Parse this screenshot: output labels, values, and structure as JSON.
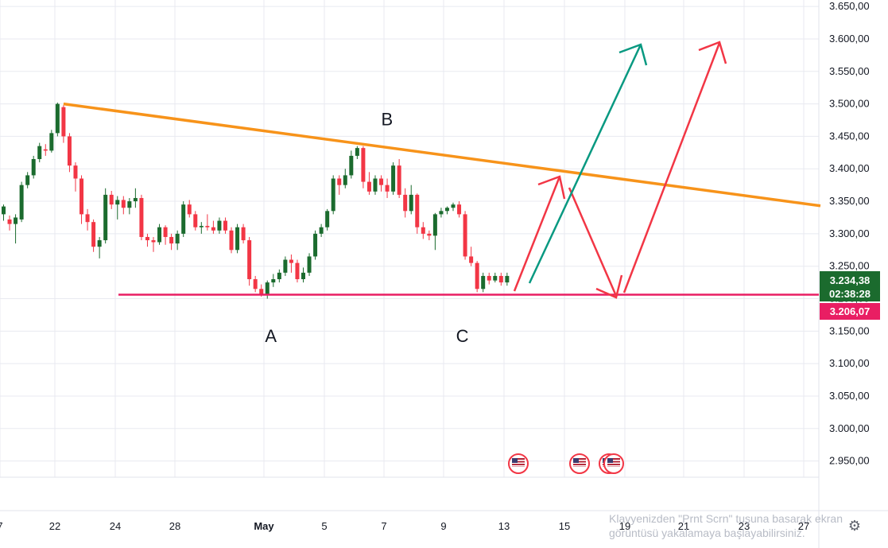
{
  "chart_data": {
    "type": "candlestick",
    "title": "",
    "xlabel": "",
    "ylabel": "",
    "ylim": [
      2925,
      3660
    ],
    "y_ticks": [
      "3.650,00",
      "3.600,00",
      "3.550,00",
      "3.500,00",
      "3.450,00",
      "3.400,00",
      "3.350,00",
      "3.300,00",
      "3.250,00",
      "3.200,00",
      "3.150,00",
      "3.100,00",
      "3.050,00",
      "3.000,00",
      "2.950,00"
    ],
    "y_tick_values": [
      3650,
      3600,
      3550,
      3500,
      3450,
      3400,
      3350,
      3300,
      3250,
      3200,
      3150,
      3100,
      3050,
      3000,
      2950
    ],
    "x_ticks": [
      "7",
      "22",
      "24",
      "28",
      "May",
      "5",
      "7",
      "9",
      "13",
      "15",
      "19",
      "21",
      "23",
      "27"
    ],
    "candles": [
      [
        3330,
        3342,
        3320,
        3345
      ],
      [
        3322,
        3315,
        3305,
        3328
      ],
      [
        3315,
        3325,
        3285,
        3330
      ],
      [
        3322,
        3375,
        3318,
        3380
      ],
      [
        3375,
        3390,
        3370,
        3395
      ],
      [
        3390,
        3415,
        3385,
        3420
      ],
      [
        3415,
        3435,
        3410,
        3440
      ],
      [
        3430,
        3428,
        3420,
        3438
      ],
      [
        3428,
        3455,
        3425,
        3460
      ],
      [
        3455,
        3500,
        3450,
        3502
      ],
      [
        3495,
        3450,
        3440,
        3498
      ],
      [
        3450,
        3405,
        3395,
        3455
      ],
      [
        3405,
        3385,
        3365,
        3410
      ],
      [
        3385,
        3330,
        3315,
        3390
      ],
      [
        3330,
        3318,
        3305,
        3338
      ],
      [
        3318,
        3280,
        3272,
        3322
      ],
      [
        3280,
        3290,
        3262,
        3295
      ],
      [
        3290,
        3360,
        3285,
        3370
      ],
      [
        3360,
        3345,
        3338,
        3366
      ],
      [
        3345,
        3352,
        3322,
        3358
      ],
      [
        3352,
        3340,
        3330,
        3358
      ],
      [
        3340,
        3350,
        3330,
        3355
      ],
      [
        3350,
        3355,
        3340,
        3370
      ],
      [
        3355,
        3295,
        3290,
        3360
      ],
      [
        3295,
        3290,
        3280,
        3300
      ],
      [
        3290,
        3287,
        3272,
        3295
      ],
      [
        3287,
        3310,
        3283,
        3315
      ],
      [
        3310,
        3295,
        3283,
        3313
      ],
      [
        3295,
        3285,
        3275,
        3300
      ],
      [
        3285,
        3300,
        3275,
        3305
      ],
      [
        3300,
        3345,
        3295,
        3350
      ],
      [
        3345,
        3330,
        3325,
        3352
      ],
      [
        3330,
        3310,
        3305,
        3335
      ],
      [
        3310,
        3312,
        3300,
        3318
      ],
      [
        3312,
        3310,
        3305,
        3330
      ],
      [
        3310,
        3305,
        3300,
        3320
      ],
      [
        3305,
        3320,
        3300,
        3325
      ],
      [
        3320,
        3305,
        3300,
        3325
      ],
      [
        3305,
        3275,
        3270,
        3310
      ],
      [
        3275,
        3310,
        3270,
        3315
      ],
      [
        3310,
        3290,
        3285,
        3315
      ],
      [
        3290,
        3230,
        3220,
        3295
      ],
      [
        3230,
        3215,
        3210,
        3235
      ],
      [
        3215,
        3205,
        3203,
        3222
      ],
      [
        3205,
        3225,
        3200,
        3228
      ],
      [
        3225,
        3230,
        3218,
        3238
      ],
      [
        3230,
        3240,
        3225,
        3245
      ],
      [
        3240,
        3260,
        3235,
        3265
      ],
      [
        3260,
        3255,
        3240,
        3268
      ],
      [
        3255,
        3230,
        3225,
        3260
      ],
      [
        3230,
        3240,
        3225,
        3248
      ],
      [
        3240,
        3265,
        3235,
        3270
      ],
      [
        3265,
        3300,
        3260,
        3305
      ],
      [
        3300,
        3310,
        3295,
        3315
      ],
      [
        3310,
        3335,
        3305,
        3338
      ],
      [
        3335,
        3385,
        3330,
        3390
      ],
      [
        3385,
        3375,
        3360,
        3390
      ],
      [
        3375,
        3390,
        3370,
        3400
      ],
      [
        3390,
        3420,
        3385,
        3428
      ],
      [
        3420,
        3432,
        3415,
        3435
      ],
      [
        3432,
        3380,
        3370,
        3435
      ],
      [
        3380,
        3365,
        3360,
        3395
      ],
      [
        3365,
        3385,
        3360,
        3390
      ],
      [
        3385,
        3375,
        3365,
        3390
      ],
      [
        3375,
        3365,
        3355,
        3385
      ],
      [
        3365,
        3405,
        3360,
        3410
      ],
      [
        3405,
        3360,
        3355,
        3415
      ],
      [
        3360,
        3335,
        3325,
        3370
      ],
      [
        3335,
        3360,
        3330,
        3375
      ],
      [
        3360,
        3310,
        3300,
        3362
      ],
      [
        3310,
        3300,
        3292,
        3318
      ],
      [
        3300,
        3297,
        3290,
        3305
      ],
      [
        3297,
        3330,
        3275,
        3332
      ],
      [
        3330,
        3335,
        3325,
        3340
      ],
      [
        3335,
        3340,
        3330,
        3342
      ],
      [
        3340,
        3345,
        3335,
        3348
      ],
      [
        3345,
        3330,
        3325,
        3350
      ],
      [
        3330,
        3265,
        3260,
        3335
      ],
      [
        3265,
        3255,
        3250,
        3280
      ],
      [
        3255,
        3215,
        3210,
        3258
      ],
      [
        3215,
        3235,
        3210,
        3240
      ],
      [
        3235,
        3228,
        3222,
        3240
      ],
      [
        3228,
        3235,
        3225,
        3240
      ],
      [
        3235,
        3225,
        3220,
        3240
      ],
      [
        3225,
        3235,
        3220,
        3240
      ]
    ],
    "annotations": {
      "trendline": {
        "from": [
          10,
          3500
        ],
        "to": [
          125,
          3343
        ]
      },
      "support": {
        "from": [
          17,
          3206.07
        ],
        "to": [
          125,
          3206.07
        ]
      },
      "labels": [
        "A",
        "B",
        "C"
      ],
      "label_points": [
        [
          43,
          3180
        ],
        [
          60,
          3460
        ],
        [
          76,
          3180
        ]
      ]
    },
    "current_price": "3.234,38",
    "countdown": "02:38:28",
    "support_price": "3.206,07"
  },
  "colors": {
    "up": "#1b6b2e",
    "down": "#f23645",
    "trendline": "#f7931a",
    "support": "#e91e63",
    "green_arrow": "#089981",
    "red_arrow": "#f23645",
    "grid": "#e8eaf0",
    "price_badge": "#1b6b2e",
    "support_badge": "#e91e63"
  },
  "events": {
    "icon": "us-flag-icon",
    "count": 4
  },
  "watermark": {
    "line1": "Klavyenizden \"Prnt Scrn\" tuşuna basarak ekran",
    "line2": "görüntüsü yakalamaya başlayabilirsiniz."
  },
  "settings_icon": "gear-icon"
}
